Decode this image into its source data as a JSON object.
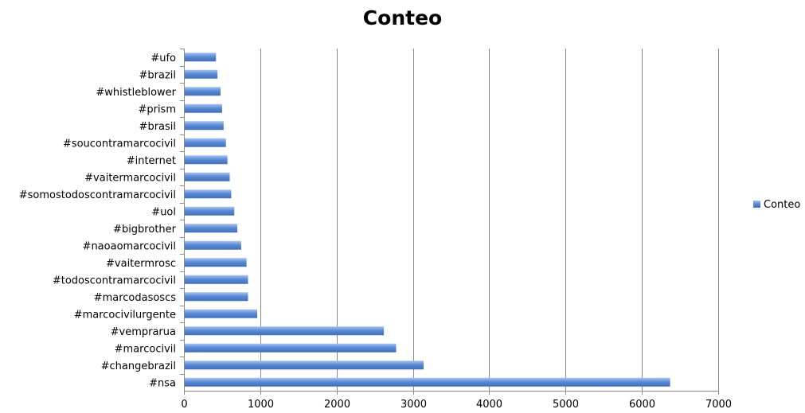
{
  "chart_data": {
    "type": "bar",
    "orientation": "horizontal",
    "title": "Conteo",
    "categories": [
      "#nsa",
      "#changebrazil",
      "#marcocivil",
      "#vemprarua",
      "#marcocivilurgente",
      "#marcodasoscs",
      "#todoscontramarcocivil",
      "#vaitermrosc",
      "#naoaomarcocivil",
      "#bigbrother",
      "#uol",
      "#somostodoscontramarcocivil",
      "#vaitermarcocivil",
      "#internet",
      "#soucontramarcocivil",
      "#brasil",
      "#prism",
      "#whistleblower",
      "#brazil",
      "#ufo"
    ],
    "series": [
      {
        "name": "Conteo",
        "values": [
          6370,
          3140,
          2780,
          2620,
          960,
          840,
          840,
          820,
          750,
          700,
          660,
          620,
          600,
          570,
          550,
          520,
          500,
          480,
          440,
          420
        ]
      }
    ],
    "xlim": [
      0,
      7000
    ],
    "xticks": [
      "0",
      "1000",
      "2000",
      "3000",
      "4000",
      "5000",
      "6000",
      "7000"
    ],
    "grid": "vertical",
    "legend": "right",
    "colors": {
      "bar": "#5b8bd6",
      "bar_light": "#a9c4f0",
      "bar_dark": "#3f6fb8",
      "grid": "#8a8a8a",
      "axis": "#8a8a8a"
    }
  }
}
